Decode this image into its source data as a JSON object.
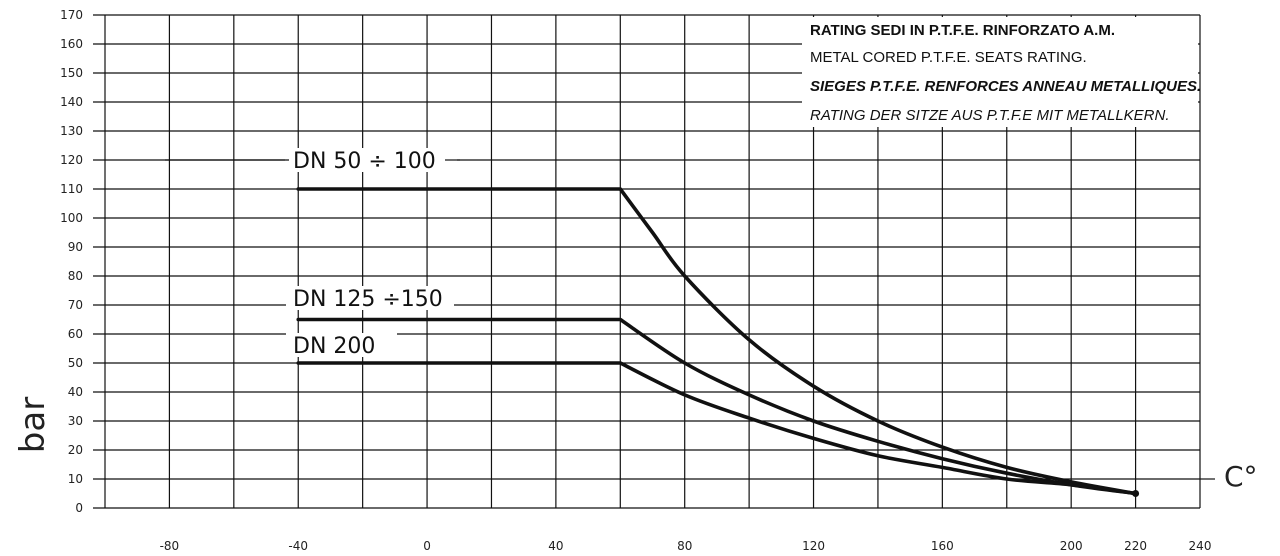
{
  "chart_data": {
    "type": "line",
    "title_lines": [
      "RATING SEDI IN P.T.F.E. RINFORZATO A.M.",
      "METAL CORED P.T.F.E. SEATS RATING.",
      "SIEGES P.T.F.E. RENFORCES ANNEAU METALLIQUES.",
      "RATING DER SITZE AUS P.T.F.E MIT METALLKERN."
    ],
    "ylabel": "bar",
    "xlabel": "C°",
    "xlim": [
      -100,
      240
    ],
    "ylim": [
      0,
      170
    ],
    "xticks": [
      -80,
      -40,
      0,
      40,
      80,
      120,
      160,
      200,
      220,
      240
    ],
    "xticks_labels": [
      "-80",
      "-40",
      "0",
      "40",
      "80",
      "120",
      "160",
      "200",
      "220",
      "240"
    ],
    "yticks": [
      0,
      10,
      20,
      30,
      40,
      50,
      60,
      70,
      80,
      90,
      100,
      110,
      120,
      130,
      140,
      150,
      160,
      170
    ],
    "yticks_labels": [
      "0",
      "10",
      "20",
      "30",
      "40",
      "50",
      "60",
      "70",
      "80",
      "90",
      "100",
      "110",
      "120",
      "130",
      "140",
      "150",
      "160",
      "170"
    ],
    "grid": true,
    "series": [
      {
        "name": "DN 50 ÷ 100",
        "points": [
          [
            -40,
            110
          ],
          [
            60,
            110
          ],
          [
            70,
            95
          ],
          [
            80,
            80
          ],
          [
            100,
            58
          ],
          [
            120,
            42
          ],
          [
            140,
            30
          ],
          [
            160,
            21
          ],
          [
            180,
            14
          ],
          [
            200,
            9
          ],
          [
            220,
            5
          ]
        ]
      },
      {
        "name": "DN 125 ÷150",
        "points": [
          [
            -40,
            65
          ],
          [
            60,
            65
          ],
          [
            80,
            50
          ],
          [
            100,
            39
          ],
          [
            120,
            30
          ],
          [
            140,
            23
          ],
          [
            160,
            17
          ],
          [
            180,
            12
          ],
          [
            200,
            8
          ],
          [
            220,
            5
          ]
        ]
      },
      {
        "name": "DN  200",
        "points": [
          [
            -40,
            50
          ],
          [
            60,
            50
          ],
          [
            80,
            39
          ],
          [
            100,
            31
          ],
          [
            120,
            24
          ],
          [
            140,
            18
          ],
          [
            160,
            14
          ],
          [
            180,
            10
          ],
          [
            200,
            8
          ],
          [
            220,
            5
          ]
        ]
      }
    ]
  }
}
